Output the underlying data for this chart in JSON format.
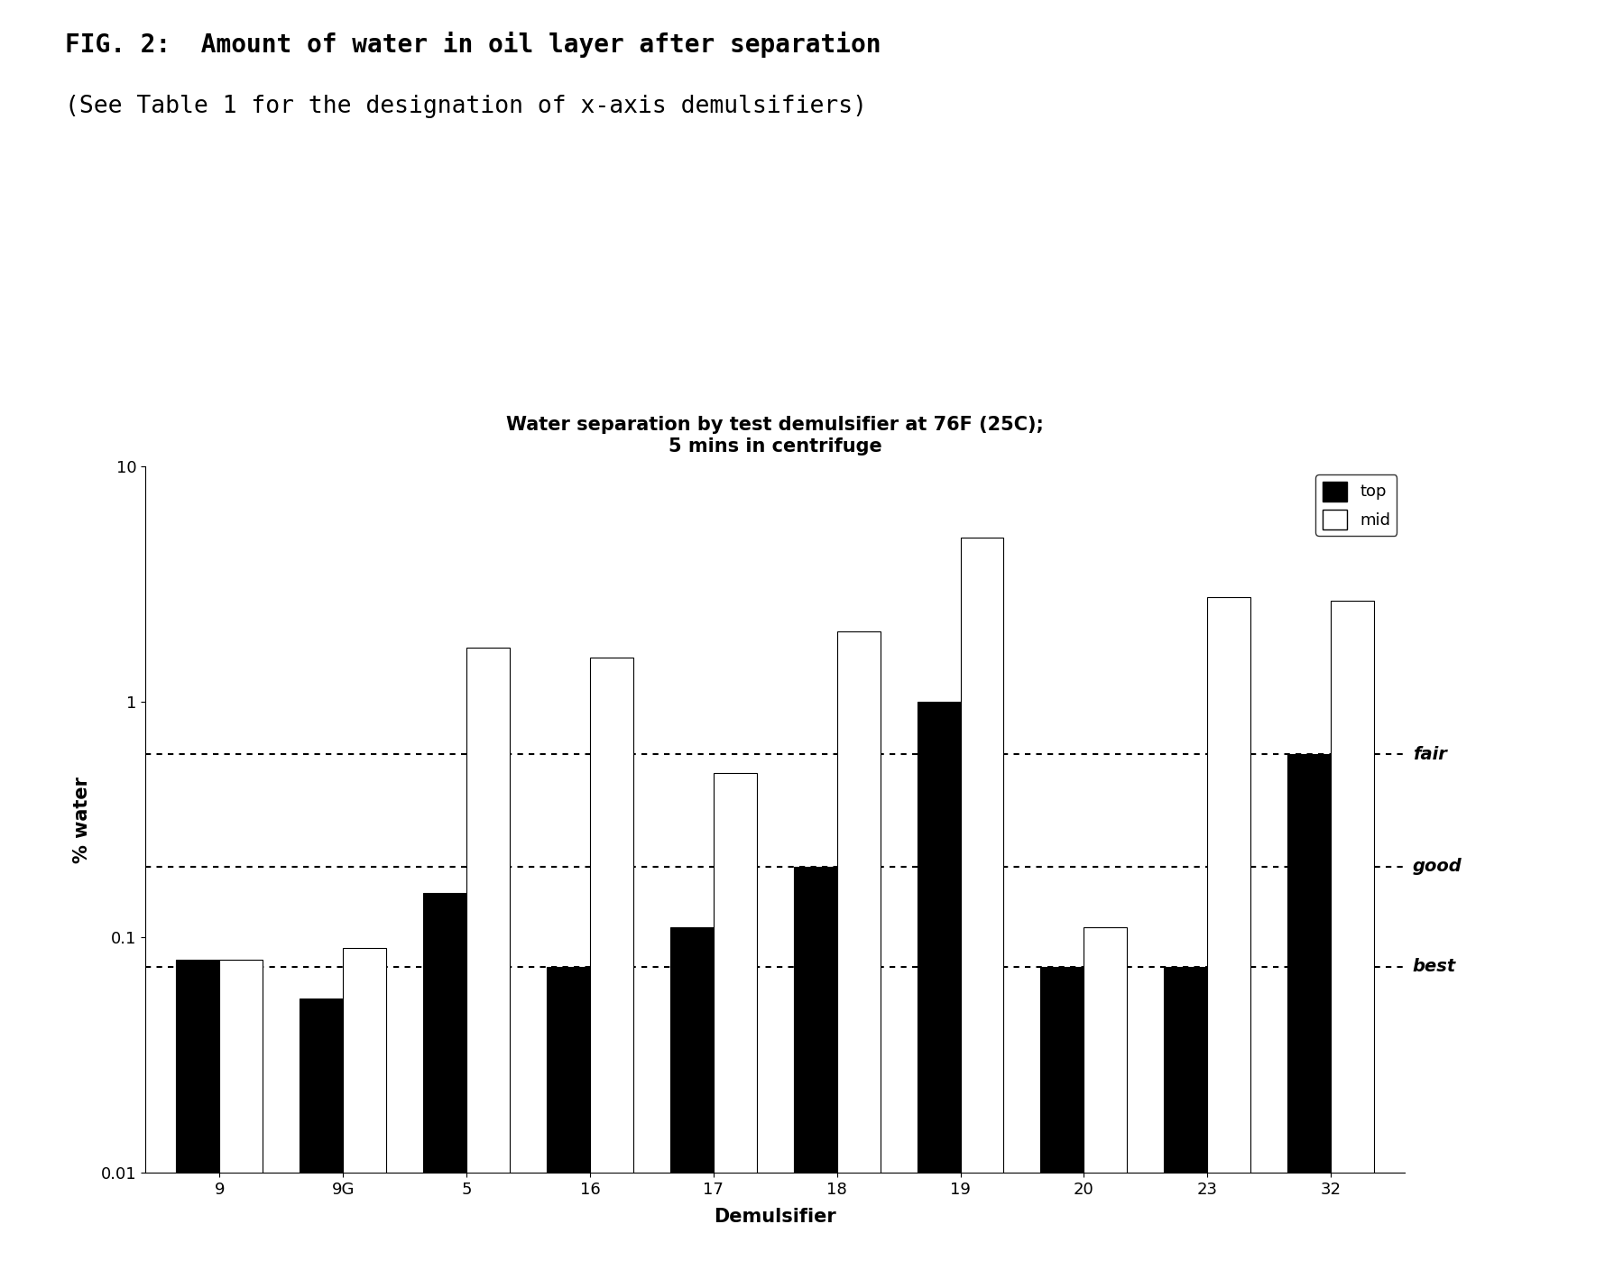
{
  "categories": [
    "9",
    "9G",
    "5",
    "16",
    "17",
    "18",
    "19",
    "20",
    "23",
    "32"
  ],
  "top_values": [
    0.08,
    0.055,
    0.155,
    0.075,
    0.11,
    0.2,
    1.0,
    0.075,
    0.075,
    0.6
  ],
  "mid_values": [
    0.08,
    0.09,
    1.7,
    1.55,
    0.5,
    2.0,
    5.0,
    0.11,
    2.8,
    2.7
  ],
  "title_line1": "Water separation by test demulsifier at 76F (25C);",
  "title_line2": "5 mins in centrifuge",
  "xlabel": "Demulsifier",
  "ylabel": "% water",
  "header_line1": "FIG. 2:  Amount of water in oil layer after separation",
  "header_line2": "(See Table 1 for the designation of x-axis demulsifiers)",
  "ref_lines": [
    {
      "value": 0.075,
      "label": "best"
    },
    {
      "value": 0.2,
      "label": "good"
    },
    {
      "value": 0.6,
      "label": "fair"
    }
  ],
  "ylim_min": 0.01,
  "ylim_max": 10,
  "bar_width": 0.35,
  "top_color": "#000000",
  "mid_color": "#ffffff",
  "mid_edgecolor": "#000000",
  "background_color": "#ffffff",
  "title_fontsize": 15,
  "axis_label_fontsize": 15,
  "tick_fontsize": 13,
  "legend_fontsize": 13,
  "header1_fontsize": 20,
  "header2_fontsize": 19,
  "refline_fontsize": 14
}
